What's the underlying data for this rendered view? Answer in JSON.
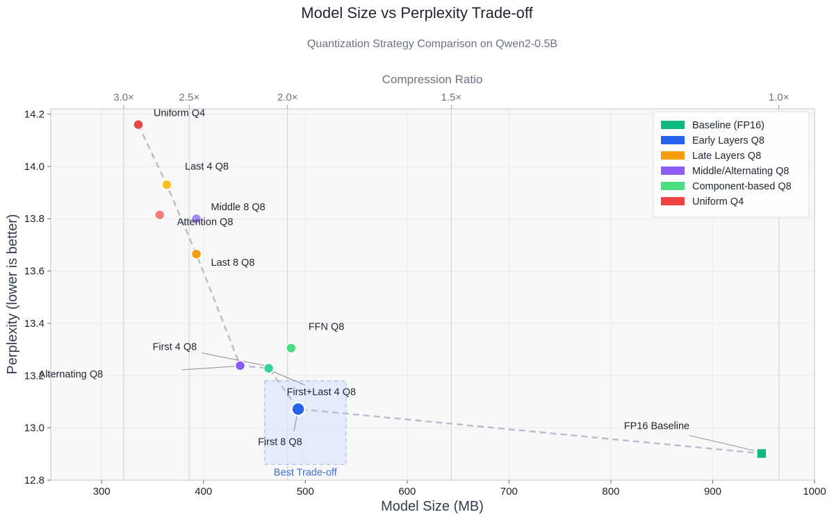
{
  "chart_data": {
    "type": "scatter",
    "title": "Model Size vs Perplexity Trade-off",
    "subtitle": "Quantization Strategy Comparison on Qwen2-0.5B",
    "xlabel": "Model Size (MB)",
    "ylabel": "Perplexity (lower is better)",
    "secondary_xlabel": "Compression Ratio",
    "xlim": [
      250,
      1000
    ],
    "ylim": [
      12.8,
      14.22
    ],
    "xticks": [
      300,
      400,
      500,
      600,
      700,
      800,
      900,
      1000
    ],
    "yticks": [
      12.8,
      13.0,
      13.2,
      13.4,
      13.6,
      13.8,
      14.0,
      14.2
    ],
    "secondary_xticks": [
      {
        "label": "3.0×",
        "ratio": 3.0
      },
      {
        "label": "2.5×",
        "ratio": 2.5
      },
      {
        "label": "2.0×",
        "ratio": 2.0
      },
      {
        "label": "1.5×",
        "ratio": 1.5
      },
      {
        "label": "1.0×",
        "ratio": 1.0
      }
    ],
    "grid": true,
    "legend_position": "top-right",
    "groups": [
      {
        "name": "Baseline (FP16)",
        "color": "#10b981"
      },
      {
        "name": "Early Layers Q8",
        "color": "#2563eb"
      },
      {
        "name": "Late Layers Q8",
        "color": "#f59e0b"
      },
      {
        "name": "Middle/Alternating Q8",
        "color": "#8b5cf6"
      },
      {
        "name": "Component-based Q8",
        "color": "#4ade80"
      },
      {
        "name": "Uniform Q4",
        "color": "#ef4444"
      }
    ],
    "points": [
      {
        "label": "Uniform Q4",
        "x": 336,
        "y": 14.16,
        "color": "#e84848",
        "shape": "circle"
      },
      {
        "label": "Last 4 Q8",
        "x": 364,
        "y": 13.93,
        "color": "#fbbf24",
        "shape": "circle"
      },
      {
        "label": "Attention Q8",
        "x": 357,
        "y": 13.815,
        "color": "#f47c7c",
        "shape": "circle"
      },
      {
        "label": "Middle 8 Q8",
        "x": 393,
        "y": 13.8,
        "color": "#a78bfa",
        "shape": "circle"
      },
      {
        "label": "Last 8 Q8",
        "x": 393,
        "y": 13.665,
        "color": "#f59e0b",
        "shape": "circle"
      },
      {
        "label": "FFN Q8",
        "x": 486,
        "y": 13.305,
        "color": "#4ade80",
        "shape": "circle"
      },
      {
        "label": "First 4 Q8",
        "x": 464,
        "y": 13.228,
        "color": "#34d399",
        "shape": "circle"
      },
      {
        "label": "Alternating Q8",
        "x": 436,
        "y": 13.238,
        "color": "#8b5cf6",
        "shape": "circle"
      },
      {
        "label": "First+Last 4 Q8",
        "x": 464,
        "y": 13.228,
        "color": "#34d399",
        "shape": "none"
      },
      {
        "label": "First 8 Q8",
        "x": 493,
        "y": 13.072,
        "color": "#2563eb",
        "shape": "circle-large"
      },
      {
        "label": "FP16 Baseline",
        "x": 948,
        "y": 12.902,
        "color": "#10b981",
        "shape": "square"
      }
    ],
    "pareto_frontier": [
      {
        "x": 336,
        "y": 14.16
      },
      {
        "x": 364,
        "y": 13.93
      },
      {
        "x": 393,
        "y": 13.665
      },
      {
        "x": 436,
        "y": 13.238
      },
      {
        "x": 464,
        "y": 13.228
      },
      {
        "x": 493,
        "y": 13.072
      },
      {
        "x": 948,
        "y": 12.902
      }
    ],
    "highlight_region": {
      "label": "Best Trade-off",
      "x_range": [
        460,
        540
      ],
      "y_range": [
        12.86,
        13.18
      ]
    }
  }
}
